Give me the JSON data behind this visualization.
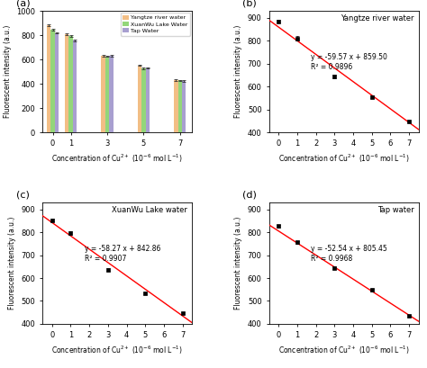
{
  "bar_x": [
    0,
    1,
    3,
    5,
    7
  ],
  "bar_yangtze": [
    880,
    807,
    632,
    553,
    430
  ],
  "bar_xuanwu": [
    843,
    793,
    627,
    528,
    428
  ],
  "bar_tap": [
    820,
    757,
    630,
    533,
    423
  ],
  "bar_err_yangtze": [
    7,
    9,
    7,
    6,
    5
  ],
  "bar_err_xuanwu": [
    7,
    7,
    5,
    5,
    4
  ],
  "bar_err_tap": [
    6,
    7,
    6,
    4,
    4
  ],
  "color_yangtze": "#F2BE85",
  "color_xuanwu": "#93D67A",
  "color_tap": "#A89FD0",
  "scatter_x": [
    0,
    1,
    3,
    5,
    7
  ],
  "scatter_yangtze_y": [
    885,
    810,
    645,
    555,
    447
  ],
  "scatter_yangtze_yerr": [
    7,
    9,
    7,
    6,
    5
  ],
  "scatter_xuanwu_y": [
    853,
    797,
    637,
    533,
    445
  ],
  "scatter_xuanwu_yerr": [
    6,
    7,
    6,
    5,
    4
  ],
  "scatter_tap_y": [
    828,
    757,
    645,
    548,
    435
  ],
  "scatter_tap_yerr": [
    6,
    6,
    6,
    5,
    4
  ],
  "line_b_slope": -59.57,
  "line_b_intercept": 859.5,
  "line_b_r2": "0.9896",
  "line_b_label": "Yangtze river water",
  "line_c_slope": -58.27,
  "line_c_intercept": 842.86,
  "line_c_r2": "0.9907",
  "line_c_label": "XuanWu Lake water",
  "line_d_slope": -52.54,
  "line_d_intercept": 805.45,
  "line_d_r2": "0.9968",
  "line_d_label": "Tap water",
  "ylabel": "Fluorescent intensity (a.u.)",
  "xlabel": "Concentration of Cu$^{2+}$ (10$^{-6}$ mol L$^{-1}$)",
  "ylim_bar": [
    0,
    1000
  ],
  "ylim_scatter": [
    400,
    930
  ],
  "bar_xticks": [
    0,
    1,
    3,
    5,
    7
  ],
  "scatter_xticks": [
    0,
    1,
    2,
    3,
    4,
    5,
    6,
    7
  ],
  "scatter_xlim": [
    -0.5,
    7.5
  ]
}
